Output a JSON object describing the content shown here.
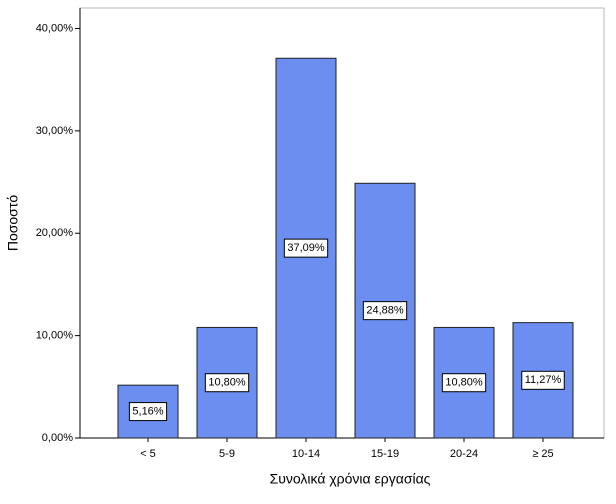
{
  "chart_data": {
    "type": "bar",
    "x_label": "Συνολικά χρόνια εργασίας",
    "y_label": "Ποσοστό",
    "categories": [
      "< 5",
      "5-9",
      "10-14",
      "15-19",
      "20-24",
      "≥ 25"
    ],
    "values": [
      5.16,
      10.8,
      37.09,
      24.88,
      10.8,
      11.27
    ],
    "value_labels": [
      "5,16%",
      "10,80%",
      "37,09%",
      "24,88%",
      "10,80%",
      "11,27%"
    ],
    "color": "#6b8ef0",
    "ylim": [
      0,
      42
    ],
    "yticks": [
      {
        "value": 0,
        "label": "0,00%"
      },
      {
        "value": 10,
        "label": "10,00%"
      },
      {
        "value": 20,
        "label": "20,00%"
      },
      {
        "value": 30,
        "label": "30,00%"
      },
      {
        "value": 40,
        "label": "40,00%"
      }
    ]
  }
}
